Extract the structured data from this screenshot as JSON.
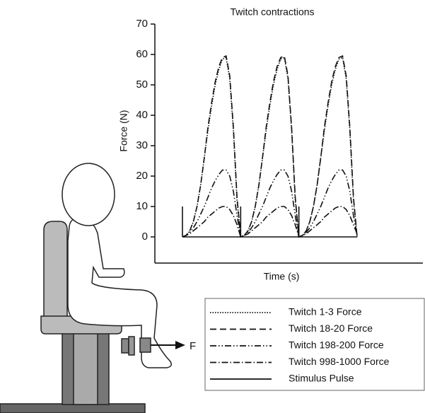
{
  "chart_data": {
    "type": "line",
    "title": "Twitch contractions",
    "x_label": "Time (s)",
    "y_label": "Force (N)",
    "categories": [
      null,
      null,
      null,
      null,
      null,
      null,
      null,
      null,
      null,
      null,
      null,
      null,
      null,
      null,
      null,
      null,
      null,
      null,
      null,
      null,
      null,
      null,
      null,
      null,
      null,
      null,
      null,
      null,
      null,
      null,
      null,
      null,
      null,
      null,
      null,
      null,
      null,
      null,
      null,
      null,
      null,
      null,
      null,
      null,
      null,
      null,
      null,
      null,
      null
    ],
    "ylim": [
      0,
      70
    ],
    "yticks": [
      0,
      10,
      20,
      30,
      40,
      50,
      60,
      70
    ],
    "grid": false,
    "series": [
      {
        "name": "Twitch 1-3 Force",
        "color": "#111111",
        "dash": "dotted",
        "values": [
          0,
          0.5,
          2,
          5,
          10,
          17,
          26,
          35,
          43,
          50,
          55,
          58.5,
          59,
          52,
          35,
          12,
          0,
          0.5,
          2,
          5,
          10,
          17,
          26,
          35,
          43,
          50,
          55,
          58.5,
          59,
          52,
          35,
          12,
          0,
          0.5,
          2,
          5,
          10,
          17,
          26,
          35,
          43,
          50,
          55,
          58.5,
          59,
          52,
          35,
          12,
          0
        ]
      },
      {
        "name": "Twitch 18-20 Force",
        "color": "#111111",
        "dash": "dashed",
        "values": [
          0,
          0.5,
          2,
          5,
          10,
          17,
          26,
          36,
          44,
          51,
          56,
          59,
          59.5,
          53,
          36,
          13,
          0,
          0.5,
          2,
          5,
          10,
          17,
          26,
          36,
          44,
          51,
          56,
          59,
          59.5,
          53,
          36,
          13,
          0,
          0.5,
          2,
          5,
          10,
          17,
          26,
          36,
          44,
          51,
          56,
          59,
          59.5,
          53,
          36,
          13,
          0
        ]
      },
      {
        "name": "Twitch 198-200 Force",
        "color": "#111111",
        "dash": "dash-dot-dot",
        "values": [
          0,
          0.5,
          1.5,
          3,
          5,
          7.5,
          10,
          13,
          16,
          18.5,
          20.5,
          22,
          22,
          20,
          15,
          7,
          0,
          0.5,
          1.5,
          3,
          5,
          7.5,
          10,
          13,
          16,
          18.5,
          20.5,
          22,
          22,
          20,
          15,
          7,
          0,
          0.5,
          1.5,
          3,
          5,
          7.5,
          10,
          13,
          16,
          18.5,
          20.5,
          22,
          22,
          20,
          15,
          7,
          0.5
        ]
      },
      {
        "name": "Twitch 998-1000 Force",
        "color": "#111111",
        "dash": "dash-dot",
        "values": [
          0,
          0.5,
          1,
          2,
          3,
          4,
          5,
          6.5,
          7.5,
          8.5,
          9.5,
          10,
          10,
          9,
          7,
          4,
          0,
          0.5,
          1,
          2,
          3,
          4,
          5,
          6.5,
          7.5,
          8.5,
          9.5,
          10,
          10,
          9,
          7,
          4,
          0,
          0.5,
          1,
          2,
          3,
          4,
          5,
          6.5,
          7.5,
          8.5,
          9.5,
          10,
          10,
          9,
          7,
          4,
          1
        ]
      },
      {
        "name": "Stimulus Pulse",
        "color": "#111111",
        "dash": "solid",
        "style": "pulse",
        "values": [
          10,
          0,
          0,
          0,
          0,
          0,
          0,
          0,
          0,
          0,
          0,
          0,
          0,
          0,
          0,
          0,
          10,
          0,
          0,
          0,
          0,
          0,
          0,
          0,
          0,
          0,
          0,
          0,
          0,
          0,
          0,
          0,
          10,
          0,
          0,
          0,
          0,
          0,
          0,
          0,
          0,
          0,
          0,
          0,
          0,
          0,
          0,
          0,
          0
        ]
      }
    ],
    "legend": "bottom-right"
  },
  "figure": {
    "force_label": "F"
  }
}
